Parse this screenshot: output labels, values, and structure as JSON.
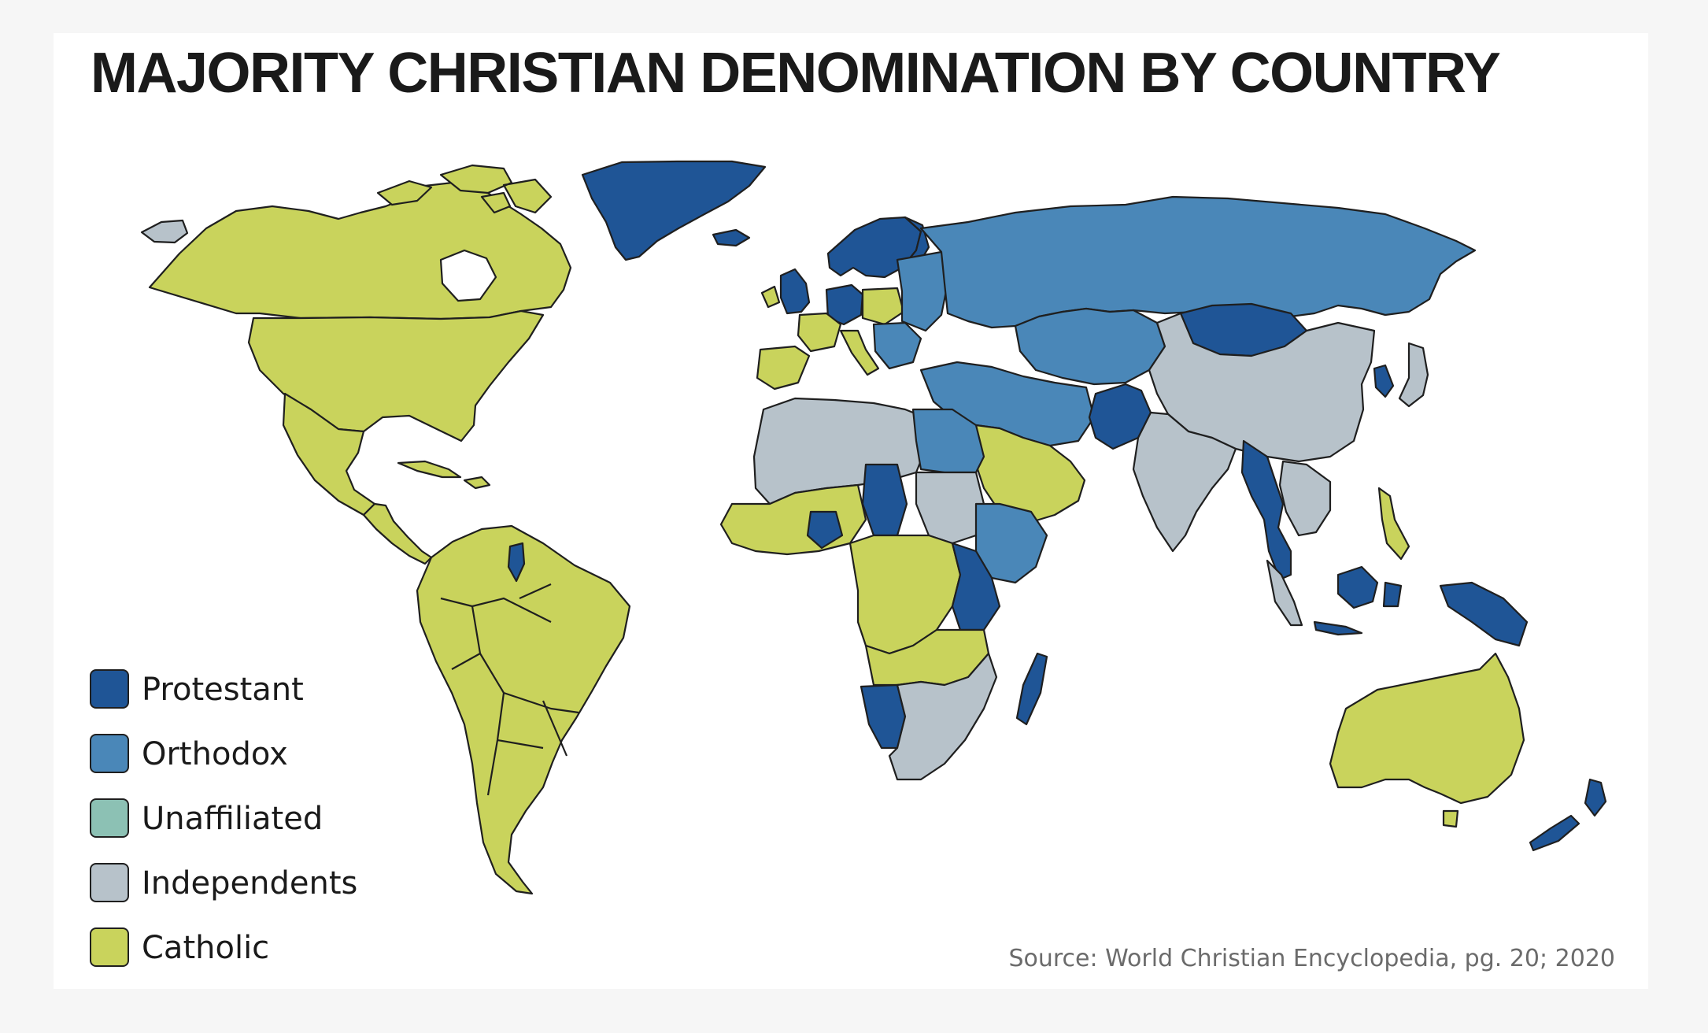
{
  "title": "MAJORITY CHRISTIAN DENOMINATION BY COUNTRY",
  "legend": [
    {
      "key": "protestant",
      "label": "Protestant",
      "color": "#1f5596"
    },
    {
      "key": "orthodox",
      "label": "Orthodox",
      "color": "#4a87b8"
    },
    {
      "key": "unaffiliated",
      "label": "Unaffiliated",
      "color": "#8cc1b4"
    },
    {
      "key": "independents",
      "label": "Independents",
      "color": "#b7c2ca"
    },
    {
      "key": "catholic",
      "label": "Catholic",
      "color": "#c9d35c"
    }
  ],
  "source": "Source: World Christian Encyclopedia, pg. 20; 2020",
  "map": {
    "type": "choropleth world map",
    "regions": [
      {
        "region": "North America",
        "category": "catholic"
      },
      {
        "region": "Alaska",
        "category": "independents"
      },
      {
        "region": "Greenland",
        "category": "protestant"
      },
      {
        "region": "Iceland",
        "category": "protestant"
      },
      {
        "region": "Central America",
        "category": "catholic"
      },
      {
        "region": "Caribbean",
        "category": "catholic"
      },
      {
        "region": "South America",
        "category": "catholic"
      },
      {
        "region": "Suriname",
        "category": "protestant"
      },
      {
        "region": "United Kingdom",
        "category": "protestant"
      },
      {
        "region": "Ireland",
        "category": "catholic"
      },
      {
        "region": "Scandinavia",
        "category": "protestant"
      },
      {
        "region": "Germany",
        "category": "protestant"
      },
      {
        "region": "Western Europe",
        "category": "catholic"
      },
      {
        "region": "Eastern Europe",
        "category": "orthodox"
      },
      {
        "region": "Russia",
        "category": "orthodox"
      },
      {
        "region": "Central Asia",
        "category": "orthodox"
      },
      {
        "region": "Mongolia",
        "category": "protestant"
      },
      {
        "region": "China",
        "category": "independents"
      },
      {
        "region": "Korea",
        "category": "protestant"
      },
      {
        "region": "Japan",
        "category": "independents"
      },
      {
        "region": "India",
        "category": "independents"
      },
      {
        "region": "Pakistan",
        "category": "protestant"
      },
      {
        "region": "Middle East",
        "category": "orthodox"
      },
      {
        "region": "Arabian Peninsula",
        "category": "catholic"
      },
      {
        "region": "Myanmar and Thailand",
        "category": "protestant"
      },
      {
        "region": "Malaysia",
        "category": "independents"
      },
      {
        "region": "Philippines",
        "category": "catholic"
      },
      {
        "region": "Indonesia",
        "category": "protestant"
      },
      {
        "region": "Papua New Guinea",
        "category": "protestant"
      },
      {
        "region": "Australia",
        "category": "catholic"
      },
      {
        "region": "New Zealand",
        "category": "protestant"
      },
      {
        "region": "North Africa",
        "category": "independents"
      },
      {
        "region": "Egypt",
        "category": "orthodox"
      },
      {
        "region": "Ethiopia",
        "category": "orthodox"
      },
      {
        "region": "Central Africa",
        "category": "catholic"
      },
      {
        "region": "Kenya and Tanzania",
        "category": "protestant"
      },
      {
        "region": "Southern Africa",
        "category": "independents"
      },
      {
        "region": "Namibia",
        "category": "protestant"
      },
      {
        "region": "Madagascar",
        "category": "protestant"
      }
    ]
  }
}
